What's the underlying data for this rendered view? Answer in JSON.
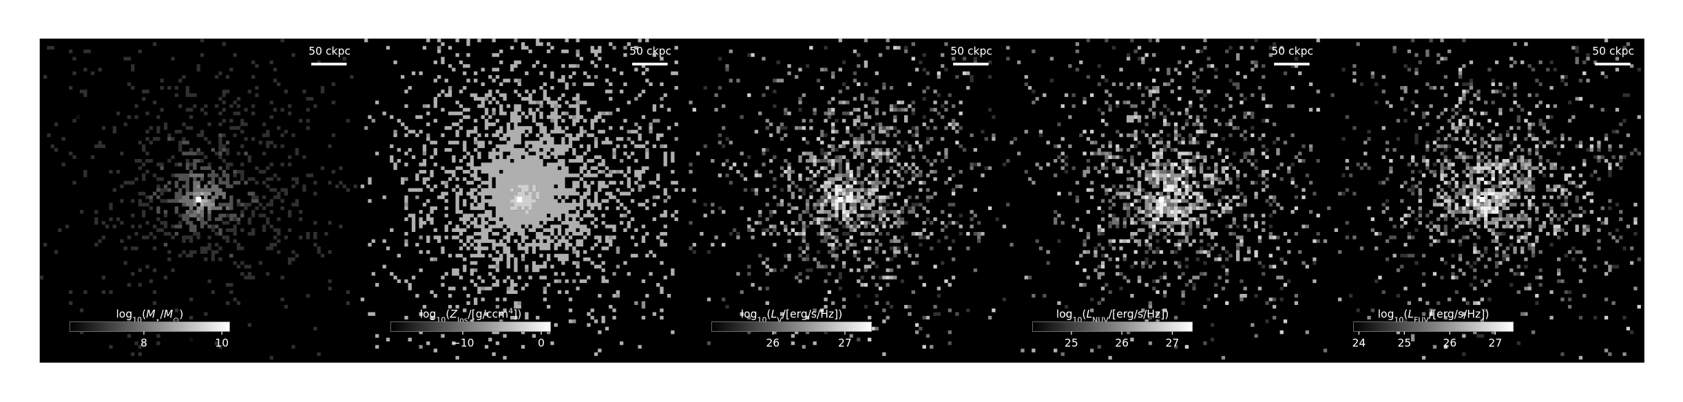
{
  "chart_data": [
    {
      "type": "image",
      "scale_bar": "50 ckpc",
      "colorbar": {
        "label": [
          {
            "text": "log"
          },
          {
            "text": "10",
            "sub": true
          },
          {
            "text": "("
          },
          {
            "text": "M",
            "italic": true
          },
          {
            "text": "⋆",
            "sub": true
          },
          {
            "text": "/"
          },
          {
            "text": "M",
            "italic": true
          },
          {
            "text": "⊙",
            "sub": true
          },
          {
            "text": ")"
          }
        ],
        "clim": [
          6.1,
          10.2
        ],
        "ticks": [
          8,
          10
        ]
      }
    },
    {
      "type": "image",
      "scale_bar": "50 ckpc",
      "colorbar": {
        "label": [
          {
            "text": "log"
          },
          {
            "text": "10",
            "sub": true
          },
          {
            "text": "("
          },
          {
            "text": "Z",
            "italic": true
          },
          {
            "text": "los",
            "sub": true
          },
          {
            "text": "/[g/ccm"
          },
          {
            "text": "4",
            "sup": true
          },
          {
            "text": "])"
          }
        ],
        "clim": [
          -19.2,
          1.2
        ],
        "ticks": [
          {
            "value": -10,
            "label": "−10"
          },
          0
        ]
      }
    },
    {
      "type": "image",
      "scale_bar": "50 ckpc",
      "colorbar": {
        "label": [
          {
            "text": "log"
          },
          {
            "text": "10",
            "sub": true
          },
          {
            "text": "("
          },
          {
            "text": "L",
            "italic": true
          },
          {
            "text": "V",
            "sub": true
          },
          {
            "text": "/[erg/s/Hz])"
          }
        ],
        "clim": [
          25.15,
          27.37
        ],
        "ticks": [
          26,
          27
        ]
      }
    },
    {
      "type": "image",
      "scale_bar": "50 ckpc",
      "colorbar": {
        "label": [
          {
            "text": "log"
          },
          {
            "text": "10",
            "sub": true
          },
          {
            "text": "("
          },
          {
            "text": "L",
            "italic": true
          },
          {
            "text": "NUV",
            "sub": true
          },
          {
            "text": "/[erg/s/Hz])"
          }
        ],
        "clim": [
          24.23,
          27.4
        ],
        "ticks": [
          25,
          26,
          27
        ]
      }
    },
    {
      "type": "image",
      "scale_bar": "50 ckpc",
      "colorbar": {
        "label": [
          {
            "text": "log"
          },
          {
            "text": "10",
            "sub": true
          },
          {
            "text": "("
          },
          {
            "text": "L",
            "italic": true
          },
          {
            "text": "FUV",
            "sub": true
          },
          {
            "text": "/[erg/s/Hz])"
          }
        ],
        "clim": [
          23.88,
          27.4
        ],
        "ticks": [
          24,
          25,
          26,
          27
        ]
      }
    }
  ]
}
